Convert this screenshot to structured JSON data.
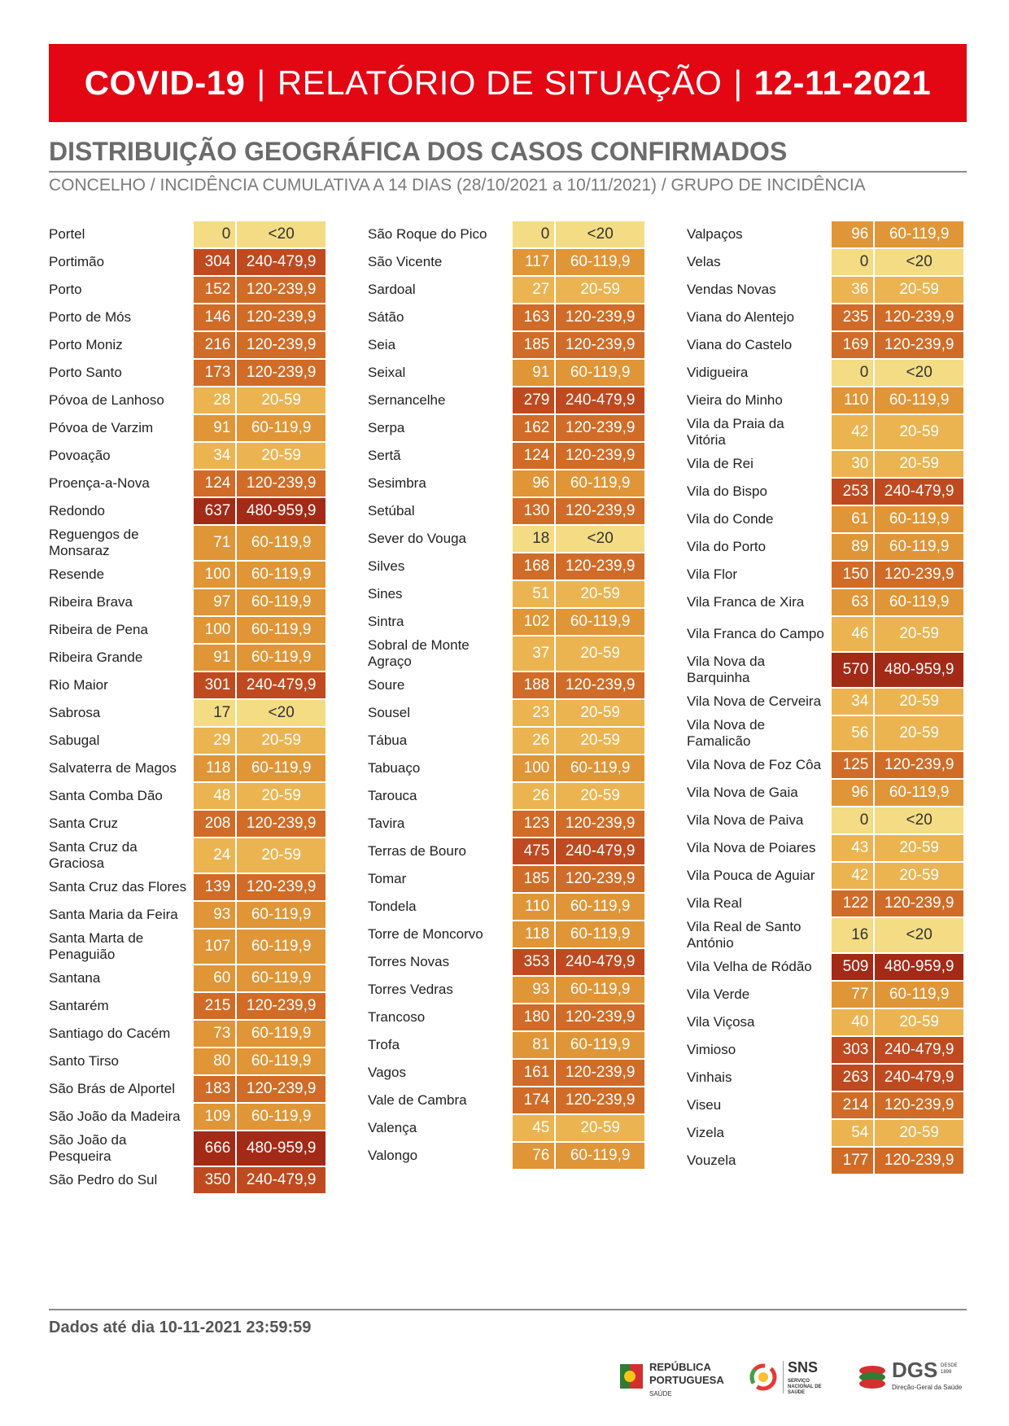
{
  "header": {
    "left": "COVID-19",
    "separator": "|",
    "middle": "RELATÓRIO DE SITUAÇÃO",
    "date": "12-11-2021"
  },
  "section_title": "DISTRIBUIÇÃO GEOGRÁFICA DOS CASOS CONFIRMADOS",
  "section_subtitle": "CONCELHO / INCIDÊNCIA CUMULATIVA A 14 DIAS (28/10/2021 a 10/11/2021) / GRUPO DE INCIDÊNCIA",
  "colors": {
    "lt20": "#f3dc84",
    "20_59": "#ebb451",
    "60_119": "#e09537",
    "120_239": "#d06c27",
    "240_479": "#bf4a1f",
    "480_959": "#a32a17",
    "banner": "#e30613"
  },
  "columns": [
    [
      {
        "name": "Portel",
        "value": "0",
        "group": "<20"
      },
      {
        "name": "Portimão",
        "value": "304",
        "group": "240-479,9"
      },
      {
        "name": "Porto",
        "value": "152",
        "group": "120-239,9"
      },
      {
        "name": "Porto de Mós",
        "value": "146",
        "group": "120-239,9"
      },
      {
        "name": "Porto Moniz",
        "value": "216",
        "group": "120-239,9"
      },
      {
        "name": "Porto Santo",
        "value": "173",
        "group": "120-239,9"
      },
      {
        "name": "Póvoa de Lanhoso",
        "value": "28",
        "group": "20-59"
      },
      {
        "name": "Póvoa de Varzim",
        "value": "91",
        "group": "60-119,9"
      },
      {
        "name": "Povoação",
        "value": "34",
        "group": "20-59"
      },
      {
        "name": "Proença-a-Nova",
        "value": "124",
        "group": "120-239,9"
      },
      {
        "name": "Redondo",
        "value": "637",
        "group": "480-959,9"
      },
      {
        "name": "Reguengos de Monsaraz",
        "value": "71",
        "group": "60-119,9"
      },
      {
        "name": "Resende",
        "value": "100",
        "group": "60-119,9"
      },
      {
        "name": "Ribeira Brava",
        "value": "97",
        "group": "60-119,9"
      },
      {
        "name": "Ribeira de Pena",
        "value": "100",
        "group": "60-119,9"
      },
      {
        "name": "Ribeira Grande",
        "value": "91",
        "group": "60-119,9"
      },
      {
        "name": "Rio Maior",
        "value": "301",
        "group": "240-479,9"
      },
      {
        "name": "Sabrosa",
        "value": "17",
        "group": "<20"
      },
      {
        "name": "Sabugal",
        "value": "29",
        "group": "20-59"
      },
      {
        "name": "Salvaterra de Magos",
        "value": "118",
        "group": "60-119,9"
      },
      {
        "name": "Santa Comba Dão",
        "value": "48",
        "group": "20-59"
      },
      {
        "name": "Santa Cruz",
        "value": "208",
        "group": "120-239,9"
      },
      {
        "name": "Santa Cruz da Graciosa",
        "value": "24",
        "group": "20-59"
      },
      {
        "name": "Santa Cruz das Flores",
        "value": "139",
        "group": "120-239,9"
      },
      {
        "name": "Santa Maria da Feira",
        "value": "93",
        "group": "60-119,9"
      },
      {
        "name": "Santa Marta de Penaguião",
        "value": "107",
        "group": "60-119,9"
      },
      {
        "name": "Santana",
        "value": "60",
        "group": "60-119,9"
      },
      {
        "name": "Santarém",
        "value": "215",
        "group": "120-239,9"
      },
      {
        "name": "Santiago do Cacém",
        "value": "73",
        "group": "60-119,9"
      },
      {
        "name": "Santo Tirso",
        "value": "80",
        "group": "60-119,9"
      },
      {
        "name": "São Brás de Alportel",
        "value": "183",
        "group": "120-239,9"
      },
      {
        "name": "São João da Madeira",
        "value": "109",
        "group": "60-119,9"
      },
      {
        "name": "São João da Pesqueira",
        "value": "666",
        "group": "480-959,9"
      },
      {
        "name": "São Pedro do Sul",
        "value": "350",
        "group": "240-479,9"
      }
    ],
    [
      {
        "name": "São Roque do Pico",
        "value": "0",
        "group": "<20"
      },
      {
        "name": "São Vicente",
        "value": "117",
        "group": "60-119,9"
      },
      {
        "name": "Sardoal",
        "value": "27",
        "group": "20-59"
      },
      {
        "name": "Sátão",
        "value": "163",
        "group": "120-239,9"
      },
      {
        "name": "Seia",
        "value": "185",
        "group": "120-239,9"
      },
      {
        "name": "Seixal",
        "value": "91",
        "group": "60-119,9"
      },
      {
        "name": "Sernancelhe",
        "value": "279",
        "group": "240-479,9"
      },
      {
        "name": "Serpa",
        "value": "162",
        "group": "120-239,9"
      },
      {
        "name": "Sertã",
        "value": "124",
        "group": "120-239,9"
      },
      {
        "name": "Sesimbra",
        "value": "96",
        "group": "60-119,9"
      },
      {
        "name": "Setúbal",
        "value": "130",
        "group": "120-239,9"
      },
      {
        "name": "Sever do Vouga",
        "value": "18",
        "group": "<20"
      },
      {
        "name": "Silves",
        "value": "168",
        "group": "120-239,9"
      },
      {
        "name": "Sines",
        "value": "51",
        "group": "20-59"
      },
      {
        "name": "Sintra",
        "value": "102",
        "group": "60-119,9"
      },
      {
        "name": "Sobral de Monte Agraço",
        "value": "37",
        "group": "20-59"
      },
      {
        "name": "Soure",
        "value": "188",
        "group": "120-239,9"
      },
      {
        "name": "Sousel",
        "value": "23",
        "group": "20-59"
      },
      {
        "name": "Tábua",
        "value": "26",
        "group": "20-59"
      },
      {
        "name": "Tabuaço",
        "value": "100",
        "group": "60-119,9"
      },
      {
        "name": "Tarouca",
        "value": "26",
        "group": "20-59"
      },
      {
        "name": "Tavira",
        "value": "123",
        "group": "120-239,9"
      },
      {
        "name": "Terras de Bouro",
        "value": "475",
        "group": "240-479,9"
      },
      {
        "name": "Tomar",
        "value": "185",
        "group": "120-239,9"
      },
      {
        "name": "Tondela",
        "value": "110",
        "group": "60-119,9"
      },
      {
        "name": "Torre de Moncorvo",
        "value": "118",
        "group": "60-119,9"
      },
      {
        "name": "Torres Novas",
        "value": "353",
        "group": "240-479,9"
      },
      {
        "name": "Torres Vedras",
        "value": "93",
        "group": "60-119,9"
      },
      {
        "name": "Trancoso",
        "value": "180",
        "group": "120-239,9"
      },
      {
        "name": "Trofa",
        "value": "81",
        "group": "60-119,9"
      },
      {
        "name": "Vagos",
        "value": "161",
        "group": "120-239,9"
      },
      {
        "name": "Vale de Cambra",
        "value": "174",
        "group": "120-239,9"
      },
      {
        "name": "Valença",
        "value": "45",
        "group": "20-59"
      },
      {
        "name": "Valongo",
        "value": "76",
        "group": "60-119,9"
      }
    ],
    [
      {
        "name": "Valpaços",
        "value": "96",
        "group": "60-119,9"
      },
      {
        "name": "Velas",
        "value": "0",
        "group": "<20"
      },
      {
        "name": "Vendas Novas",
        "value": "36",
        "group": "20-59"
      },
      {
        "name": "Viana do Alentejo",
        "value": "235",
        "group": "120-239,9"
      },
      {
        "name": "Viana do Castelo",
        "value": "169",
        "group": "120-239,9"
      },
      {
        "name": "Vidigueira",
        "value": "0",
        "group": "<20"
      },
      {
        "name": "Vieira do Minho",
        "value": "110",
        "group": "60-119,9"
      },
      {
        "name": "Vila da Praia da Vitória",
        "value": "42",
        "group": "20-59"
      },
      {
        "name": "Vila de Rei",
        "value": "30",
        "group": "20-59"
      },
      {
        "name": "Vila do Bispo",
        "value": "253",
        "group": "240-479,9"
      },
      {
        "name": "Vila do Conde",
        "value": "61",
        "group": "60-119,9"
      },
      {
        "name": "Vila do Porto",
        "value": "89",
        "group": "60-119,9"
      },
      {
        "name": "Vila Flor",
        "value": "150",
        "group": "120-239,9"
      },
      {
        "name": "Vila Franca de Xira",
        "value": "63",
        "group": "60-119,9"
      },
      {
        "name": "Vila Franca do Campo",
        "value": "46",
        "group": "20-59"
      },
      {
        "name": "Vila Nova da Barquinha",
        "value": "570",
        "group": "480-959,9"
      },
      {
        "name": "Vila Nova de Cerveira",
        "value": "34",
        "group": "20-59"
      },
      {
        "name": "Vila Nova de Famalicão",
        "value": "56",
        "group": "20-59"
      },
      {
        "name": "Vila Nova de Foz Côa",
        "value": "125",
        "group": "120-239,9"
      },
      {
        "name": "Vila Nova de Gaia",
        "value": "96",
        "group": "60-119,9"
      },
      {
        "name": "Vila Nova de Paiva",
        "value": "0",
        "group": "<20"
      },
      {
        "name": "Vila Nova de Poiares",
        "value": "43",
        "group": "20-59"
      },
      {
        "name": "Vila Pouca de Aguiar",
        "value": "42",
        "group": "20-59"
      },
      {
        "name": "Vila Real",
        "value": "122",
        "group": "120-239,9"
      },
      {
        "name": "Vila Real de Santo António",
        "value": "16",
        "group": "<20"
      },
      {
        "name": "Vila Velha de Ródão",
        "value": "509",
        "group": "480-959,9"
      },
      {
        "name": "Vila Verde",
        "value": "77",
        "group": "60-119,9"
      },
      {
        "name": "Vila Viçosa",
        "value": "40",
        "group": "20-59"
      },
      {
        "name": "Vimioso",
        "value": "303",
        "group": "240-479,9"
      },
      {
        "name": "Vinhais",
        "value": "263",
        "group": "240-479,9"
      },
      {
        "name": "Viseu",
        "value": "214",
        "group": "120-239,9"
      },
      {
        "name": "Vizela",
        "value": "54",
        "group": "20-59"
      },
      {
        "name": "Vouzela",
        "value": "177",
        "group": "120-239,9"
      }
    ]
  ],
  "footer": {
    "text": "Dados até dia 10-11-2021 23:59:59"
  },
  "logos": {
    "republica_line1": "REPÚBLICA",
    "republica_line2": "PORTUGUESA",
    "republica_sub": "SAÚDE",
    "sns": "SNS",
    "sns_sub": "SERVIÇO NACIONAL DE SAÚDE",
    "dgs": "DGS",
    "dgs_sub": "Direção-Geral da Saúde",
    "dgs_since": "DESDE 1899"
  }
}
